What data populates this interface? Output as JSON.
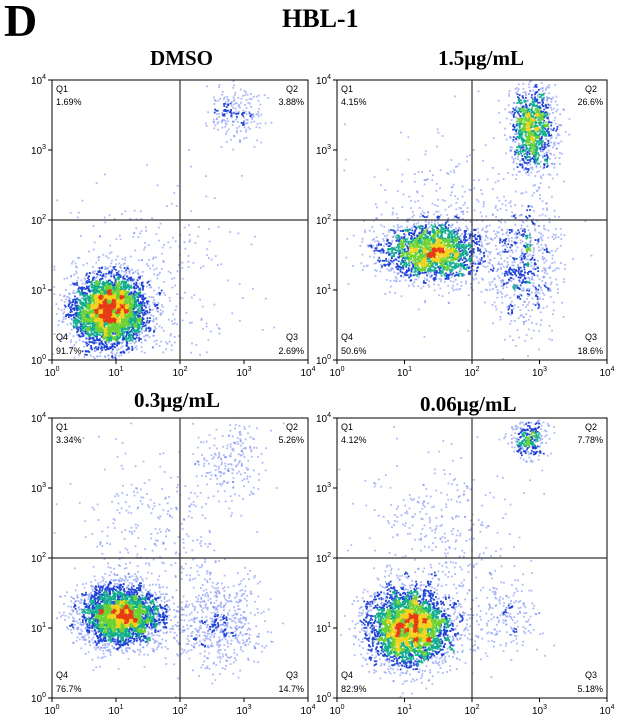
{
  "panel_letter": "D",
  "figure_title": "HBL-1",
  "chart_data": [
    {
      "type": "scatter",
      "title": "DMSO",
      "x_scale": "log",
      "y_scale": "log",
      "xlim": [
        1,
        10000
      ],
      "ylim": [
        1,
        10000
      ],
      "x_ticks": [
        "10^0",
        "10^1",
        "10^2",
        "10^3",
        "10^4"
      ],
      "y_ticks": [
        "10^0",
        "10^1",
        "10^2",
        "10^3",
        "10^4"
      ],
      "quadrant_gate": {
        "x": 100,
        "y": 100
      },
      "quadrants": [
        {
          "name": "Q1",
          "percent": "1.69%"
        },
        {
          "name": "Q2",
          "percent": "3.88%"
        },
        {
          "name": "Q3",
          "percent": "2.69%"
        },
        {
          "name": "Q4",
          "percent": "91.7%"
        }
      ],
      "populations": [
        {
          "x": 8,
          "y": 5,
          "spread": [
            0.3,
            0.26
          ],
          "weight": 0.88
        },
        {
          "x": 700,
          "y": 3500,
          "spread": [
            0.22,
            0.2
          ],
          "weight": 0.05
        },
        {
          "x": 40,
          "y": 15,
          "spread": [
            0.7,
            0.7
          ],
          "weight": 0.07
        }
      ]
    },
    {
      "type": "scatter",
      "title": "1.5μg/mL",
      "x_scale": "log",
      "y_scale": "log",
      "xlim": [
        1,
        10000
      ],
      "ylim": [
        1,
        10000
      ],
      "x_ticks": [
        "10^0",
        "10^1",
        "10^2",
        "10^3",
        "10^4"
      ],
      "y_ticks": [
        "10^0",
        "10^1",
        "10^2",
        "10^3",
        "10^4"
      ],
      "quadrant_gate": {
        "x": 100,
        "y": 100
      },
      "quadrants": [
        {
          "name": "Q1",
          "percent": "4.15%"
        },
        {
          "name": "Q2",
          "percent": "26.6%"
        },
        {
          "name": "Q3",
          "percent": "18.6%"
        },
        {
          "name": "Q4",
          "percent": "50.6%"
        }
      ],
      "populations": [
        {
          "x": 25,
          "y": 35,
          "spread": [
            0.38,
            0.2
          ],
          "weight": 0.5
        },
        {
          "x": 800,
          "y": 2000,
          "spread": [
            0.16,
            0.3
          ],
          "weight": 0.27
        },
        {
          "x": 600,
          "y": 20,
          "spread": [
            0.25,
            0.45
          ],
          "weight": 0.15
        },
        {
          "x": 60,
          "y": 100,
          "spread": [
            0.7,
            0.6
          ],
          "weight": 0.08
        }
      ]
    },
    {
      "type": "scatter",
      "title": "0.3μg/mL",
      "x_scale": "log",
      "y_scale": "log",
      "xlim": [
        1,
        10000
      ],
      "ylim": [
        1,
        10000
      ],
      "x_ticks": [
        "10^0",
        "10^1",
        "10^2",
        "10^3",
        "10^4"
      ],
      "y_ticks": [
        "10^0",
        "10^1",
        "10^2",
        "10^3",
        "10^4"
      ],
      "quadrant_gate": {
        "x": 100,
        "y": 100
      },
      "quadrants": [
        {
          "name": "Q1",
          "percent": "3.34%"
        },
        {
          "name": "Q2",
          "percent": "5.26%"
        },
        {
          "name": "Q3",
          "percent": "14.7%"
        },
        {
          "name": "Q4",
          "percent": "76.7%"
        }
      ],
      "populations": [
        {
          "x": 12,
          "y": 15,
          "spread": [
            0.32,
            0.22
          ],
          "weight": 0.74
        },
        {
          "x": 400,
          "y": 12,
          "spread": [
            0.35,
            0.35
          ],
          "weight": 0.14
        },
        {
          "x": 600,
          "y": 2500,
          "spread": [
            0.3,
            0.3
          ],
          "weight": 0.05
        },
        {
          "x": 40,
          "y": 200,
          "spread": [
            0.6,
            0.6
          ],
          "weight": 0.07
        }
      ]
    },
    {
      "type": "scatter",
      "title": "0.06μg/mL",
      "x_scale": "log",
      "y_scale": "log",
      "xlim": [
        1,
        10000
      ],
      "ylim": [
        1,
        10000
      ],
      "x_ticks": [
        "10^0",
        "10^1",
        "10^2",
        "10^3",
        "10^4"
      ],
      "y_ticks": [
        "10^0",
        "10^1",
        "10^2",
        "10^3",
        "10^4"
      ],
      "quadrant_gate": {
        "x": 100,
        "y": 100
      },
      "quadrants": [
        {
          "name": "Q1",
          "percent": "4.12%"
        },
        {
          "name": "Q2",
          "percent": "7.78%"
        },
        {
          "name": "Q3",
          "percent": "5.18%"
        },
        {
          "name": "Q4",
          "percent": "82.9%"
        }
      ],
      "populations": [
        {
          "x": 12,
          "y": 10,
          "spread": [
            0.32,
            0.28
          ],
          "weight": 0.8
        },
        {
          "x": 700,
          "y": 5000,
          "spread": [
            0.14,
            0.15
          ],
          "weight": 0.07
        },
        {
          "x": 300,
          "y": 15,
          "spread": [
            0.3,
            0.3
          ],
          "weight": 0.05
        },
        {
          "x": 30,
          "y": 200,
          "spread": [
            0.55,
            0.6
          ],
          "weight": 0.08
        }
      ]
    }
  ]
}
